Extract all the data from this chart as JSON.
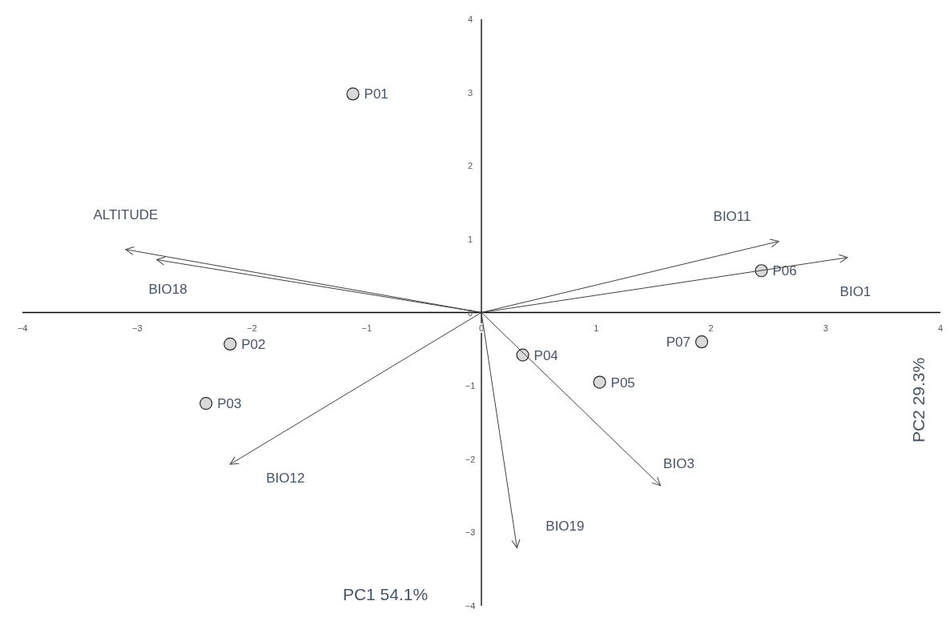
{
  "chart_data": {
    "type": "scatter",
    "xlabel": "PC1 54.1%",
    "ylabel": "PC2 29.3%",
    "xlim": [
      -4,
      4
    ],
    "ylim": [
      -4,
      4
    ],
    "xticks": [
      -4,
      -3,
      -2,
      -1,
      0,
      1,
      2,
      3,
      4
    ],
    "yticks": [
      -4,
      -3,
      -2,
      -1,
      0,
      1,
      2,
      3,
      4
    ],
    "grid": false,
    "series": [
      {
        "name": "P01",
        "color": "#d9d9d9",
        "marker": "circle",
        "x": [
          -1.12
        ],
        "values": [
          2.98
        ]
      },
      {
        "name": "P02",
        "color": "#d9d9d9",
        "marker": "circle",
        "x": [
          -2.19
        ],
        "values": [
          -0.43
        ]
      },
      {
        "name": "P03",
        "color": "#d9d9d9",
        "marker": "circle",
        "x": [
          -2.4
        ],
        "values": [
          -1.24
        ]
      },
      {
        "name": "P04",
        "color": "#d9d9d9",
        "marker": "circle",
        "x": [
          0.36
        ],
        "values": [
          -0.58
        ]
      },
      {
        "name": "P05",
        "color": "#d9d9d9",
        "marker": "circle",
        "x": [
          1.03
        ],
        "values": [
          -0.95
        ]
      },
      {
        "name": "P06",
        "color": "#d9d9d9",
        "marker": "circle",
        "x": [
          2.44
        ],
        "values": [
          0.57
        ]
      },
      {
        "name": "P07",
        "color": "#d9d9d9",
        "marker": "circle",
        "x": [
          1.92
        ],
        "values": [
          -0.4
        ]
      },
      {
        "name": "ALTITUDE",
        "type": "line",
        "marker": "none",
        "color": "#404040",
        "x": [
          0,
          -3.1
        ],
        "values": [
          0,
          0.86
        ]
      },
      {
        "name": "BIO18",
        "type": "line",
        "marker": "none",
        "color": "#404040",
        "x": [
          0,
          -2.83
        ],
        "values": [
          0,
          0.72
        ]
      },
      {
        "name": "BIO11",
        "type": "line",
        "marker": "none",
        "color": "#404040",
        "x": [
          0,
          2.59
        ],
        "values": [
          0,
          0.97
        ]
      },
      {
        "name": "BIO1",
        "type": "line",
        "marker": "none",
        "color": "#404040",
        "x": [
          0,
          3.19
        ],
        "values": [
          0,
          0.75
        ]
      },
      {
        "name": "BIO12",
        "type": "line",
        "marker": "none",
        "color": "#404040",
        "x": [
          0,
          -2.19
        ],
        "values": [
          0,
          -2.07
        ]
      },
      {
        "name": "BIO3",
        "type": "line",
        "marker": "none",
        "color": "#404040",
        "x": [
          0,
          1.56
        ],
        "values": [
          0,
          -2.36
        ]
      },
      {
        "name": "BIO19",
        "type": "line",
        "marker": "none",
        "color": "#404040",
        "x": [
          0,
          0.31
        ],
        "values": [
          0,
          -3.21
        ]
      }
    ]
  }
}
